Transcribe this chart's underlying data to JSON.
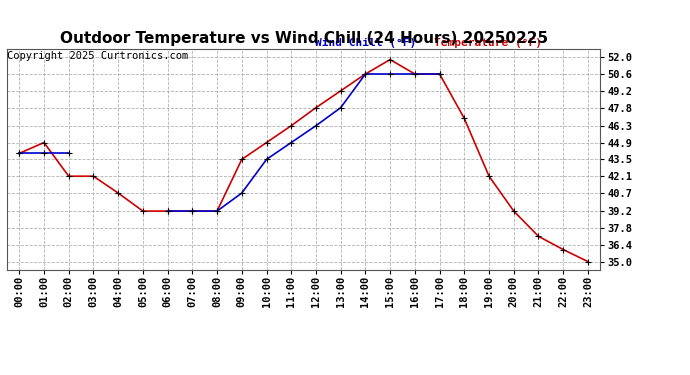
{
  "title": "Outdoor Temperature vs Wind Chill (24 Hours) 20250225",
  "copyright": "Copyright 2025 Curtronics.com",
  "legend_wind_chill": "Wind Chill (°F)",
  "legend_temperature": "Temperature (°F)",
  "hours": [
    "00:00",
    "01:00",
    "02:00",
    "03:00",
    "04:00",
    "05:00",
    "06:00",
    "07:00",
    "08:00",
    "09:00",
    "10:00",
    "11:00",
    "12:00",
    "13:00",
    "14:00",
    "15:00",
    "16:00",
    "17:00",
    "18:00",
    "19:00",
    "20:00",
    "21:00",
    "22:00",
    "23:00"
  ],
  "temperature": [
    44.0,
    44.9,
    42.1,
    42.1,
    40.7,
    39.2,
    39.2,
    39.2,
    39.2,
    43.5,
    44.9,
    46.3,
    47.8,
    49.2,
    50.6,
    51.8,
    50.6,
    50.6,
    46.9,
    42.1,
    39.2,
    37.1,
    36.0,
    35.0
  ],
  "wind_chill": [
    44.0,
    44.0,
    44.0,
    null,
    null,
    null,
    39.2,
    39.2,
    39.2,
    40.7,
    43.5,
    44.9,
    46.3,
    47.8,
    50.6,
    50.6,
    50.6,
    50.6,
    null,
    null,
    null,
    null,
    null,
    null
  ],
  "ylim": [
    34.3,
    52.7
  ],
  "yticks": [
    35.0,
    36.4,
    37.8,
    39.2,
    40.7,
    42.1,
    43.5,
    44.9,
    46.3,
    47.8,
    49.2,
    50.6,
    52.0
  ],
  "temp_color": "#cc0000",
  "wind_color": "#0000cc",
  "grid_color": "#aaaaaa",
  "bg_color": "#ffffff",
  "title_fontsize": 11,
  "tick_fontsize": 7.5,
  "copyright_fontsize": 7.5,
  "legend_fontsize": 8
}
